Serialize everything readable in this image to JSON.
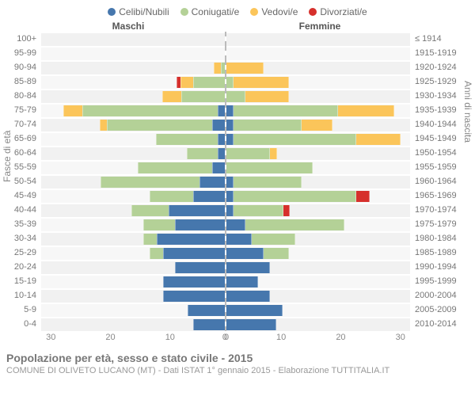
{
  "colors": {
    "celibi": "#4677ad",
    "coniugati": "#b4d197",
    "vedovi": "#fbc55a",
    "divorziati": "#d6302c",
    "plot_bg_even": "#f1f1f1",
    "plot_bg_odd": "#f7f7f7",
    "center_line": "#bbbbbb"
  },
  "legend": [
    {
      "key": "celibi",
      "label": "Celibi/Nubili"
    },
    {
      "key": "coniugati",
      "label": "Coniugati/e"
    },
    {
      "key": "vedovi",
      "label": "Vedovi/e"
    },
    {
      "key": "divorziati",
      "label": "Divorziati/e"
    }
  ],
  "header_male": "Maschi",
  "header_female": "Femmine",
  "yaxis_left": "Fasce di età",
  "yaxis_right": "Anni di nascita",
  "xmax": 30,
  "xticks": [
    0,
    10,
    20,
    30
  ],
  "rows": [
    {
      "age": "100+",
      "birth": "≤ 1914",
      "m": [
        0,
        0,
        0,
        0
      ],
      "f": [
        0,
        0,
        0,
        0
      ]
    },
    {
      "age": "95-99",
      "birth": "1915-1919",
      "m": [
        0,
        0,
        0,
        0
      ],
      "f": [
        0,
        0,
        0,
        0
      ]
    },
    {
      "age": "90-94",
      "birth": "1920-1924",
      "m": [
        0,
        0.5,
        1,
        0
      ],
      "f": [
        0,
        0,
        6,
        0
      ]
    },
    {
      "age": "85-89",
      "birth": "1925-1929",
      "m": [
        0,
        5,
        2,
        0.5
      ],
      "f": [
        0,
        1,
        9,
        0
      ]
    },
    {
      "age": "80-84",
      "birth": "1930-1934",
      "m": [
        0,
        7,
        3,
        0
      ],
      "f": [
        0,
        3,
        7,
        0
      ]
    },
    {
      "age": "75-79",
      "birth": "1935-1939",
      "m": [
        1,
        22,
        3,
        0
      ],
      "f": [
        1,
        17,
        9,
        0
      ]
    },
    {
      "age": "70-74",
      "birth": "1940-1944",
      "m": [
        2,
        17,
        1,
        0
      ],
      "f": [
        1,
        11,
        5,
        0
      ]
    },
    {
      "age": "65-69",
      "birth": "1945-1949",
      "m": [
        1,
        10,
        0,
        0
      ],
      "f": [
        1,
        20,
        7,
        0
      ]
    },
    {
      "age": "60-64",
      "birth": "1950-1954",
      "m": [
        1,
        5,
        0,
        0
      ],
      "f": [
        0,
        7,
        1,
        0
      ]
    },
    {
      "age": "55-59",
      "birth": "1955-1959",
      "m": [
        2,
        12,
        0,
        0
      ],
      "f": [
        0,
        14,
        0,
        0
      ]
    },
    {
      "age": "50-54",
      "birth": "1960-1964",
      "m": [
        4,
        16,
        0,
        0
      ],
      "f": [
        1,
        11,
        0,
        0
      ]
    },
    {
      "age": "45-49",
      "birth": "1965-1969",
      "m": [
        5,
        7,
        0,
        0
      ],
      "f": [
        1,
        20,
        0,
        2
      ]
    },
    {
      "age": "40-44",
      "birth": "1970-1974",
      "m": [
        9,
        6,
        0,
        0
      ],
      "f": [
        1,
        8,
        0,
        1
      ]
    },
    {
      "age": "35-39",
      "birth": "1975-1979",
      "m": [
        8,
        5,
        0,
        0
      ],
      "f": [
        3,
        16,
        0,
        0
      ]
    },
    {
      "age": "30-34",
      "birth": "1980-1984",
      "m": [
        11,
        2,
        0,
        0
      ],
      "f": [
        4,
        7,
        0,
        0
      ]
    },
    {
      "age": "25-29",
      "birth": "1985-1989",
      "m": [
        10,
        2,
        0,
        0
      ],
      "f": [
        6,
        4,
        0,
        0
      ]
    },
    {
      "age": "20-24",
      "birth": "1990-1994",
      "m": [
        8,
        0,
        0,
        0
      ],
      "f": [
        7,
        0,
        0,
        0
      ]
    },
    {
      "age": "15-19",
      "birth": "1995-1999",
      "m": [
        10,
        0,
        0,
        0
      ],
      "f": [
        5,
        0,
        0,
        0
      ]
    },
    {
      "age": "10-14",
      "birth": "2000-2004",
      "m": [
        10,
        0,
        0,
        0
      ],
      "f": [
        7,
        0,
        0,
        0
      ]
    },
    {
      "age": "5-9",
      "birth": "2005-2009",
      "m": [
        6,
        0,
        0,
        0
      ],
      "f": [
        9,
        0,
        0,
        0
      ]
    },
    {
      "age": "0-4",
      "birth": "2010-2014",
      "m": [
        5,
        0,
        0,
        0
      ],
      "f": [
        8,
        0,
        0,
        0
      ]
    }
  ],
  "footer_title": "Popolazione per età, sesso e stato civile - 2015",
  "footer_sub": "COMUNE DI OLIVETO LUCANO (MT) - Dati ISTAT 1° gennaio 2015 - Elaborazione TUTTITALIA.IT"
}
